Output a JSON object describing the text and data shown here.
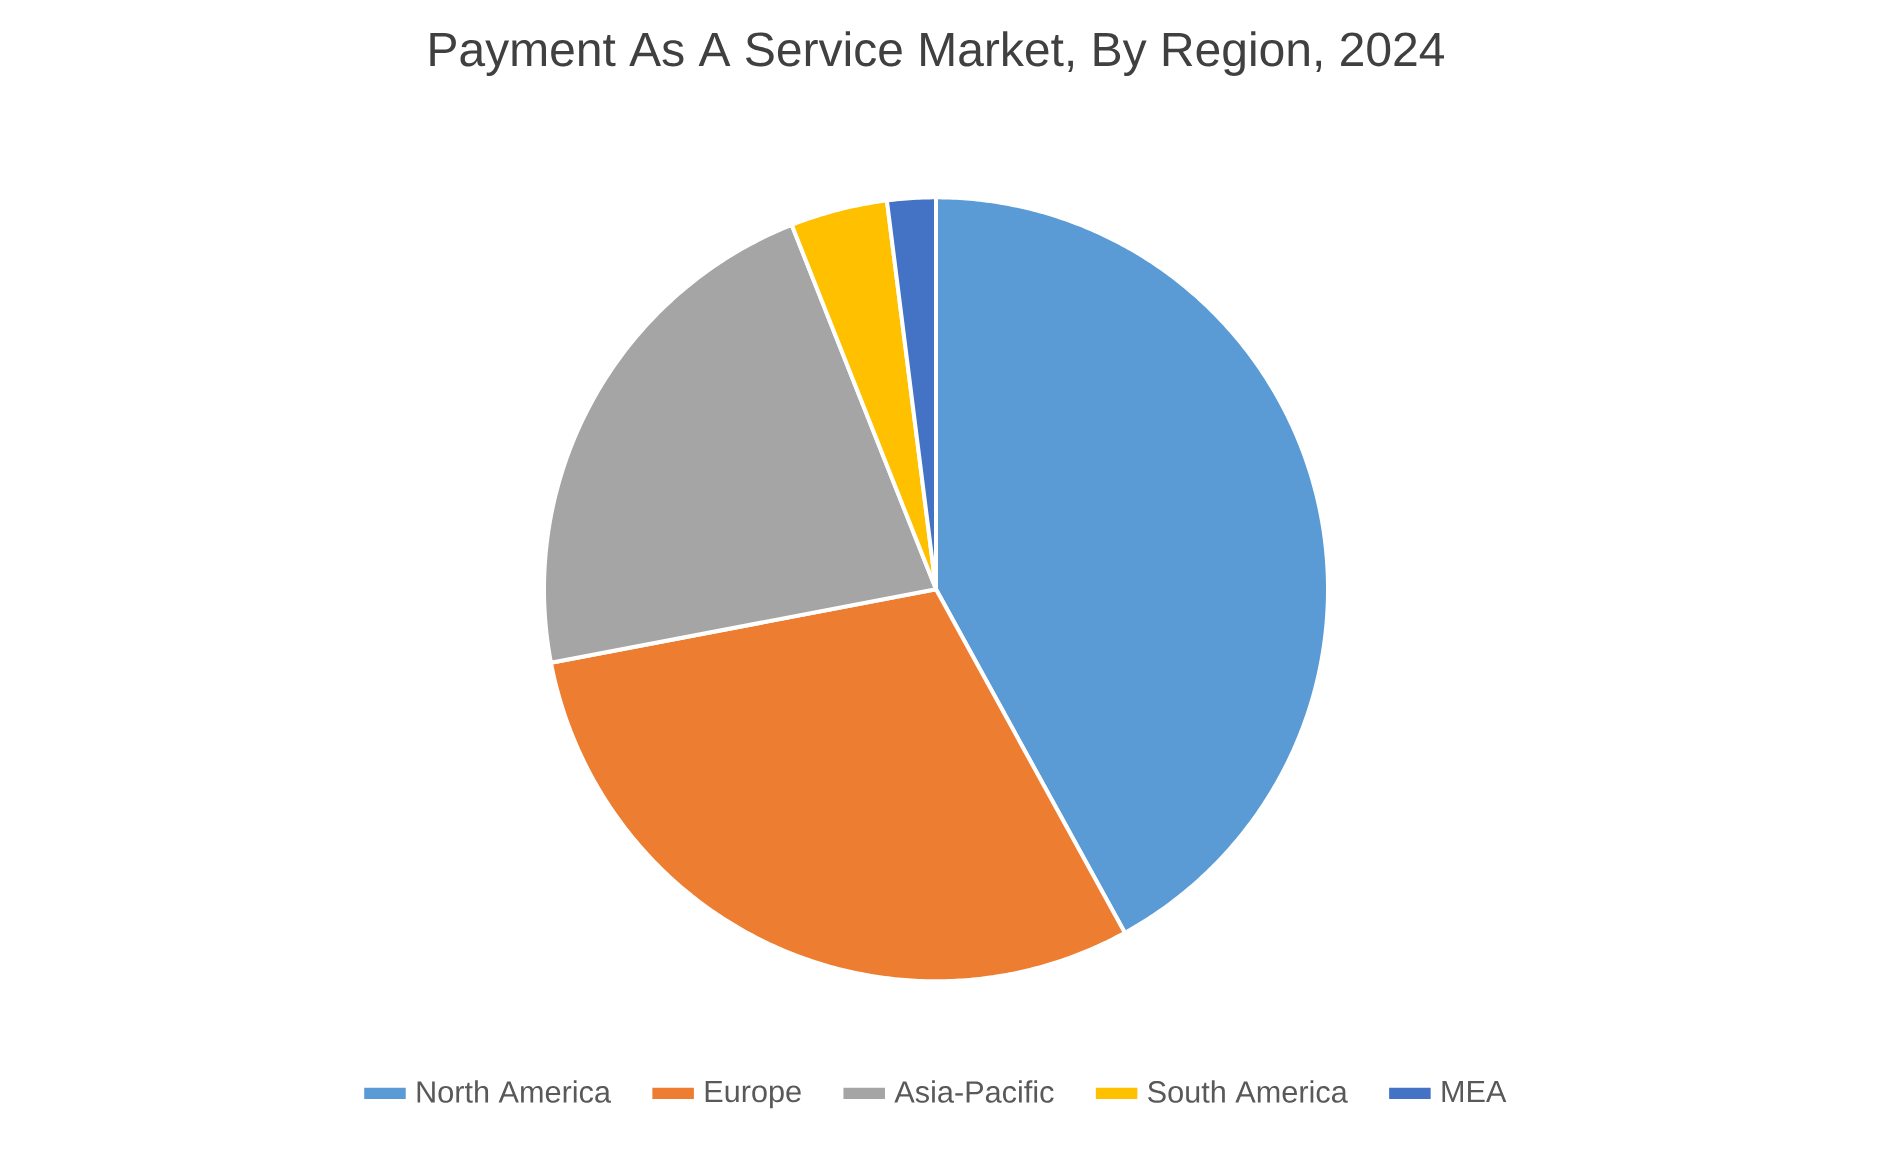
{
  "chart_data": {
    "type": "pie",
    "title": "Payment As A Service Market, By Region, 2024",
    "categories": [
      "North America",
      "Europe",
      "Asia-Pacific",
      "South America",
      "MEA"
    ],
    "values": [
      42,
      30,
      22,
      4,
      2
    ],
    "colors": [
      "#5b9bd5",
      "#ed7d31",
      "#a5a5a5",
      "#ffc000",
      "#4472c4"
    ],
    "legend": "bottom"
  }
}
